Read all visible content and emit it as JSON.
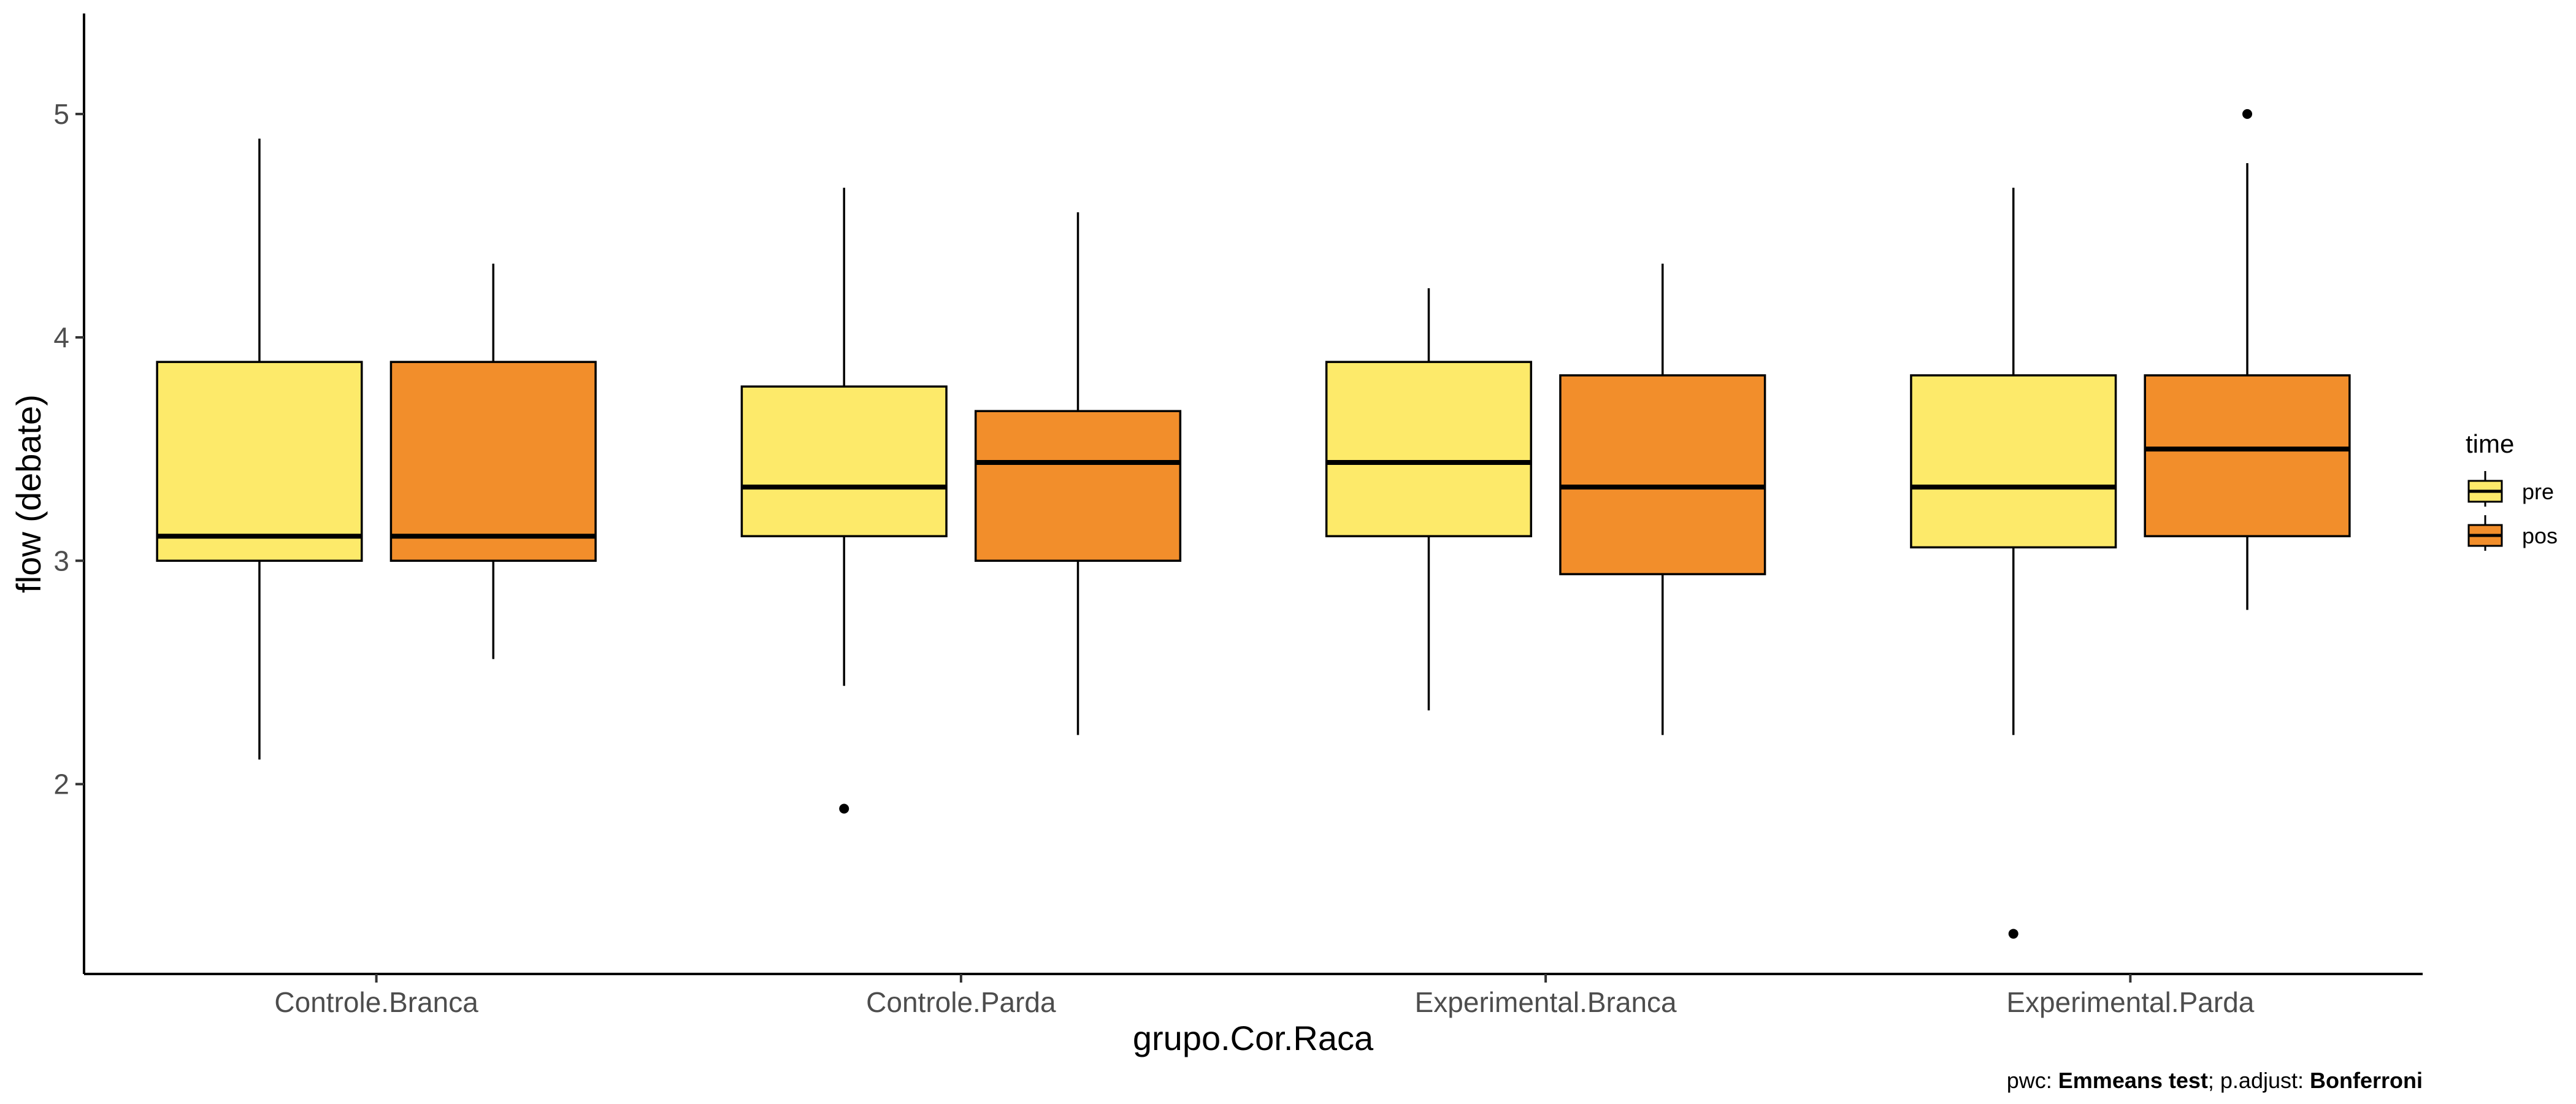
{
  "chart_data": {
    "type": "boxplot",
    "xlabel": "grupo.Cor.Raca",
    "ylabel": "flow (debate)",
    "ylim": [
      1.15,
      5.45
    ],
    "yticks": [
      2,
      3,
      4,
      5
    ],
    "categories": [
      "Controle.Branca",
      "Controle.Parda",
      "Experimental.Branca",
      "Experimental.Parda"
    ],
    "legend": {
      "title": "time",
      "position": "right",
      "items": [
        {
          "name": "pre",
          "color": "#FDEA6A"
        },
        {
          "name": "pos",
          "color": "#F28E2B"
        }
      ]
    },
    "series": [
      {
        "name": "pre",
        "color": "#FDEA6A",
        "boxes": [
          {
            "min": 2.11,
            "q1": 3.0,
            "median": 3.11,
            "q3": 3.89,
            "max": 4.89,
            "outliers": []
          },
          {
            "min": 2.44,
            "q1": 3.11,
            "median": 3.33,
            "q3": 3.78,
            "max": 4.67,
            "outliers": [
              1.89
            ]
          },
          {
            "min": 2.33,
            "q1": 3.11,
            "median": 3.44,
            "q3": 3.89,
            "max": 4.22,
            "outliers": []
          },
          {
            "min": 2.22,
            "q1": 3.06,
            "median": 3.33,
            "q3": 3.83,
            "max": 4.67,
            "outliers": [
              1.33
            ]
          }
        ]
      },
      {
        "name": "pos",
        "color": "#F28E2B",
        "boxes": [
          {
            "min": 2.56,
            "q1": 3.0,
            "median": 3.11,
            "q3": 3.89,
            "max": 4.33,
            "outliers": []
          },
          {
            "min": 2.22,
            "q1": 3.0,
            "median": 3.44,
            "q3": 3.67,
            "max": 4.56,
            "outliers": []
          },
          {
            "min": 2.22,
            "q1": 2.94,
            "median": 3.33,
            "q3": 3.83,
            "max": 4.33,
            "outliers": []
          },
          {
            "min": 2.78,
            "q1": 3.11,
            "median": 3.5,
            "q3": 3.83,
            "max": 4.78,
            "outliers": [
              5.0
            ]
          }
        ]
      }
    ],
    "caption": {
      "prefix": "pwc: ",
      "test": "Emmeans test",
      "middle": "; p.adjust: ",
      "adjust": "Bonferroni"
    },
    "grid": false
  }
}
